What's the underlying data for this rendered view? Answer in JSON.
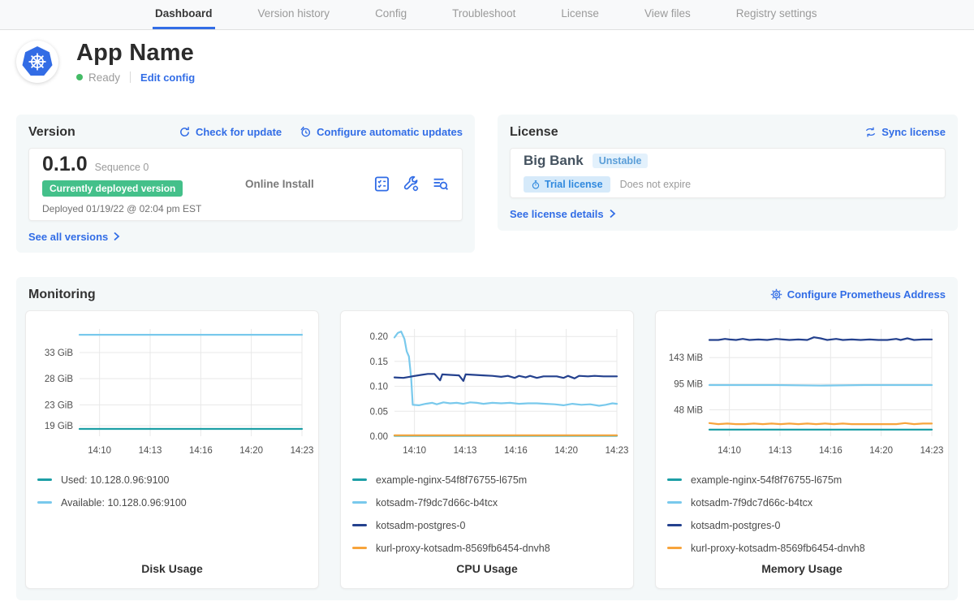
{
  "nav": {
    "tabs": [
      {
        "label": "Dashboard",
        "active": true
      },
      {
        "label": "Version history",
        "active": false
      },
      {
        "label": "Config",
        "active": false
      },
      {
        "label": "Troubleshoot",
        "active": false
      },
      {
        "label": "License",
        "active": false
      },
      {
        "label": "View files",
        "active": false
      },
      {
        "label": "Registry settings",
        "active": false
      }
    ]
  },
  "app": {
    "name": "App Name",
    "status": "Ready",
    "edit_config_label": "Edit config"
  },
  "version": {
    "title": "Version",
    "check_update_label": "Check for update",
    "auto_updates_label": "Configure automatic updates",
    "number": "0.1.0",
    "sequence": "Sequence 0",
    "deployed_badge": "Currently deployed version",
    "deployed_at": "Deployed 01/19/22 @ 02:04 pm EST",
    "install_type": "Online Install",
    "see_all_label": "See all versions"
  },
  "license": {
    "title": "License",
    "sync_label": "Sync license",
    "customer": "Big Bank",
    "channel_badge": "Unstable",
    "type_badge": "Trial license",
    "expiry": "Does not expire",
    "details_label": "See license details"
  },
  "monitoring": {
    "title": "Monitoring",
    "configure_label": "Configure Prometheus Address"
  },
  "colors": {
    "accent_blue": "#326de6",
    "ready_green": "#44bb66",
    "deployed_green": "#44c08a",
    "series_teal": "#1d9fa6",
    "series_light_blue": "#79c9ec",
    "series_navy": "#24418e",
    "series_orange": "#f7a43c"
  },
  "chart_data": [
    {
      "type": "line",
      "title": "Disk Usage",
      "x_ticks": [
        "14:10",
        "14:13",
        "14:16",
        "14:20",
        "14:23"
      ],
      "ylim": [
        17,
        37.5
      ],
      "y_ticks": [
        {
          "v": 19,
          "label": "19 GiB"
        },
        {
          "v": 23,
          "label": "23 GiB"
        },
        {
          "v": 28,
          "label": "28 GiB"
        },
        {
          "v": 33,
          "label": "33 GiB"
        }
      ],
      "grid": true,
      "legend_position": "below",
      "series": [
        {
          "name": "Used: 10.128.0.96:9100",
          "color": "#1d9fa6",
          "points": [
            [
              0,
              18.4
            ],
            [
              1,
              18.4
            ]
          ]
        },
        {
          "name": "Available: 10.128.0.96:9100",
          "color": "#79c9ec",
          "points": [
            [
              0,
              36.4
            ],
            [
              1,
              36.4
            ]
          ]
        }
      ]
    },
    {
      "type": "line",
      "title": "CPU Usage",
      "x_ticks": [
        "14:10",
        "14:13",
        "14:16",
        "14:20",
        "14:23"
      ],
      "ylim": [
        0,
        0.215
      ],
      "y_ticks": [
        {
          "v": 0.0,
          "label": "0.00"
        },
        {
          "v": 0.05,
          "label": "0.05"
        },
        {
          "v": 0.1,
          "label": "0.10"
        },
        {
          "v": 0.15,
          "label": "0.15"
        },
        {
          "v": 0.2,
          "label": "0.20"
        }
      ],
      "grid": true,
      "legend_position": "below",
      "series": [
        {
          "name": "example-nginx-54f8f76755-l675m",
          "color": "#1d9fa6",
          "points": [
            [
              0,
              0.001
            ],
            [
              1,
              0.001
            ]
          ]
        },
        {
          "name": "kotsadm-7f9dc7d66c-b4tcx",
          "color": "#79c9ec",
          "points": [
            [
              0,
              0.198
            ],
            [
              0.015,
              0.207
            ],
            [
              0.03,
              0.21
            ],
            [
              0.045,
              0.195
            ],
            [
              0.055,
              0.17
            ],
            [
              0.065,
              0.16
            ],
            [
              0.075,
              0.118
            ],
            [
              0.082,
              0.063
            ],
            [
              0.11,
              0.062
            ],
            [
              0.14,
              0.065
            ],
            [
              0.17,
              0.067
            ],
            [
              0.19,
              0.064
            ],
            [
              0.22,
              0.068
            ],
            [
              0.25,
              0.066
            ],
            [
              0.28,
              0.067
            ],
            [
              0.31,
              0.065
            ],
            [
              0.34,
              0.068
            ],
            [
              0.37,
              0.067
            ],
            [
              0.4,
              0.065
            ],
            [
              0.44,
              0.067
            ],
            [
              0.48,
              0.066
            ],
            [
              0.52,
              0.067
            ],
            [
              0.56,
              0.065
            ],
            [
              0.6,
              0.066
            ],
            [
              0.64,
              0.066
            ],
            [
              0.68,
              0.065
            ],
            [
              0.72,
              0.064
            ],
            [
              0.76,
              0.062
            ],
            [
              0.8,
              0.065
            ],
            [
              0.84,
              0.063
            ],
            [
              0.88,
              0.064
            ],
            [
              0.92,
              0.061
            ],
            [
              0.95,
              0.063
            ],
            [
              0.98,
              0.066
            ],
            [
              1,
              0.065
            ]
          ]
        },
        {
          "name": "kotsadm-postgres-0",
          "color": "#24418e",
          "points": [
            [
              0,
              0.118
            ],
            [
              0.04,
              0.117
            ],
            [
              0.08,
              0.12
            ],
            [
              0.12,
              0.123
            ],
            [
              0.15,
              0.125
            ],
            [
              0.18,
              0.125
            ],
            [
              0.205,
              0.112
            ],
            [
              0.215,
              0.124
            ],
            [
              0.25,
              0.123
            ],
            [
              0.29,
              0.122
            ],
            [
              0.31,
              0.111
            ],
            [
              0.32,
              0.124
            ],
            [
              0.36,
              0.123
            ],
            [
              0.4,
              0.122
            ],
            [
              0.44,
              0.121
            ],
            [
              0.48,
              0.119
            ],
            [
              0.51,
              0.121
            ],
            [
              0.54,
              0.117
            ],
            [
              0.56,
              0.121
            ],
            [
              0.59,
              0.118
            ],
            [
              0.61,
              0.121
            ],
            [
              0.64,
              0.117
            ],
            [
              0.67,
              0.12
            ],
            [
              0.7,
              0.12
            ],
            [
              0.73,
              0.12
            ],
            [
              0.76,
              0.117
            ],
            [
              0.78,
              0.121
            ],
            [
              0.81,
              0.116
            ],
            [
              0.83,
              0.121
            ],
            [
              0.87,
              0.12
            ],
            [
              0.9,
              0.121
            ],
            [
              0.94,
              0.12
            ],
            [
              1,
              0.12
            ]
          ]
        },
        {
          "name": "kurl-proxy-kotsadm-8569fb6454-dnvh8",
          "color": "#f7a43c",
          "points": [
            [
              0,
              0.002
            ],
            [
              1,
              0.002
            ]
          ]
        }
      ]
    },
    {
      "type": "line",
      "title": "Memory Usage",
      "x_ticks": [
        "14:10",
        "14:13",
        "14:16",
        "14:20",
        "14:23"
      ],
      "ylim": [
        0,
        195
      ],
      "y_ticks": [
        {
          "v": 48,
          "label": "48 MiB"
        },
        {
          "v": 95,
          "label": "95 MiB"
        },
        {
          "v": 143,
          "label": "143 MiB"
        }
      ],
      "grid": true,
      "legend_position": "below",
      "series": [
        {
          "name": "example-nginx-54f8f76755-l675m",
          "color": "#1d9fa6",
          "points": [
            [
              0,
              12
            ],
            [
              1,
              12
            ]
          ]
        },
        {
          "name": "kotsadm-7f9dc7d66c-b4tcx",
          "color": "#79c9ec",
          "points": [
            [
              0,
              93
            ],
            [
              0.3,
              93
            ],
            [
              0.5,
              92
            ],
            [
              0.7,
              93
            ],
            [
              1,
              93
            ]
          ]
        },
        {
          "name": "kotsadm-postgres-0",
          "color": "#24418e",
          "points": [
            [
              0,
              175
            ],
            [
              0.04,
              175
            ],
            [
              0.07,
              177
            ],
            [
              0.09,
              176
            ],
            [
              0.12,
              175
            ],
            [
              0.15,
              177
            ],
            [
              0.18,
              175
            ],
            [
              0.22,
              176
            ],
            [
              0.26,
              175
            ],
            [
              0.3,
              177
            ],
            [
              0.33,
              176
            ],
            [
              0.36,
              175
            ],
            [
              0.4,
              176
            ],
            [
              0.44,
              175
            ],
            [
              0.47,
              180
            ],
            [
              0.5,
              178
            ],
            [
              0.53,
              175
            ],
            [
              0.57,
              177
            ],
            [
              0.6,
              175
            ],
            [
              0.64,
              176
            ],
            [
              0.68,
              175
            ],
            [
              0.72,
              176
            ],
            [
              0.76,
              175
            ],
            [
              0.8,
              175
            ],
            [
              0.84,
              177
            ],
            [
              0.86,
              175
            ],
            [
              0.89,
              178
            ],
            [
              0.92,
              175
            ],
            [
              0.96,
              176
            ],
            [
              1,
              176
            ]
          ]
        },
        {
          "name": "kurl-proxy-kotsadm-8569fb6454-dnvh8",
          "color": "#f7a43c",
          "points": [
            [
              0,
              24
            ],
            [
              0.04,
              22
            ],
            [
              0.08,
              23
            ],
            [
              0.12,
              22
            ],
            [
              0.16,
              22
            ],
            [
              0.2,
              23
            ],
            [
              0.24,
              22
            ],
            [
              0.28,
              23
            ],
            [
              0.32,
              22
            ],
            [
              0.36,
              23
            ],
            [
              0.4,
              22
            ],
            [
              0.44,
              23
            ],
            [
              0.48,
              22
            ],
            [
              0.52,
              23
            ],
            [
              0.56,
              22
            ],
            [
              0.6,
              23
            ],
            [
              0.64,
              22
            ],
            [
              0.68,
              22
            ],
            [
              0.72,
              22
            ],
            [
              0.76,
              22
            ],
            [
              0.8,
              22
            ],
            [
              0.84,
              22
            ],
            [
              0.88,
              24
            ],
            [
              0.92,
              22
            ],
            [
              0.96,
              23
            ],
            [
              1,
              23
            ]
          ]
        }
      ]
    }
  ]
}
